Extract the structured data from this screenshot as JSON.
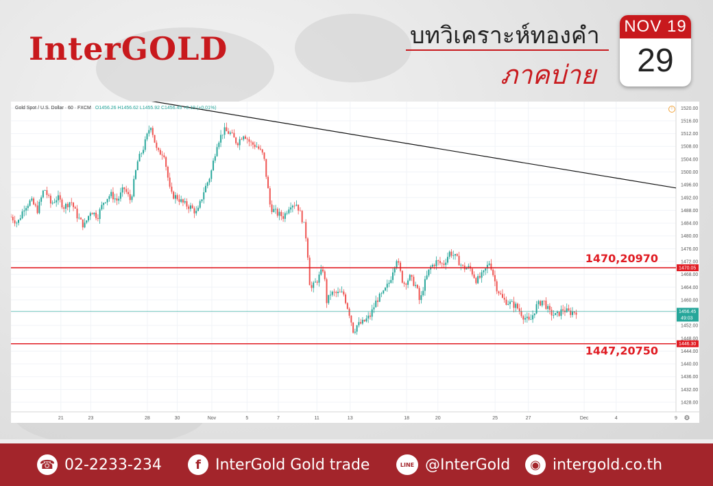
{
  "header": {
    "logo_text": "InterGOLD",
    "title_line1": "บทวิเคราะห์ทองคำ",
    "title_line2": "ภาคบ่าย",
    "calendar_month": "NOV 19",
    "calendar_day": "29"
  },
  "chart_data": {
    "type": "candlestick",
    "symbol_label": "Gold Spot / U.S. Dollar · 60 · FXCM",
    "ohlc_label": "O1456.26 H1456.62 L1455.92 C1456.45 +0.19 (+0.01%)",
    "y_ticks": [
      1520,
      1516,
      1512,
      1508,
      1504,
      1500,
      1496,
      1492,
      1488,
      1484,
      1480,
      1476,
      1472,
      1468,
      1464,
      1460,
      1456,
      1452,
      1448,
      1444,
      1440,
      1436,
      1432,
      1428
    ],
    "y_tick_labels": [
      "1520.00",
      "1516.00",
      "1512.00",
      "1508.00",
      "1504.00",
      "1500.00",
      "1496.00",
      "1492.00",
      "1488.00",
      "1484.00",
      "1480.00",
      "1476.00",
      "1472.00",
      "1468.00",
      "1464.00",
      "1460.00",
      "1456.00",
      "1452.00",
      "1448.00",
      "1444.00",
      "1440.00",
      "1436.00",
      "1432.00",
      "1428.00"
    ],
    "ylim": [
      1425,
      1522
    ],
    "x_ticks": [
      {
        "label": "21",
        "t": 0.075
      },
      {
        "label": "23",
        "t": 0.12
      },
      {
        "label": "28",
        "t": 0.205
      },
      {
        "label": "30",
        "t": 0.25
      },
      {
        "label": "Nov",
        "t": 0.302
      },
      {
        "label": "5",
        "t": 0.355
      },
      {
        "label": "7",
        "t": 0.402
      },
      {
        "label": "11",
        "t": 0.46
      },
      {
        "label": "13",
        "t": 0.51
      },
      {
        "label": "18",
        "t": 0.595
      },
      {
        "label": "20",
        "t": 0.642
      },
      {
        "label": "25",
        "t": 0.728
      },
      {
        "label": "27",
        "t": 0.778
      },
      {
        "label": "Dec",
        "t": 0.862
      },
      {
        "label": "4",
        "t": 0.91
      },
      {
        "label": "9",
        "t": 1.0
      }
    ],
    "close_path": [
      [
        0.0,
        1486
      ],
      [
        0.01,
        1484
      ],
      [
        0.02,
        1489
      ],
      [
        0.03,
        1491
      ],
      [
        0.04,
        1488
      ],
      [
        0.05,
        1495
      ],
      [
        0.06,
        1490
      ],
      [
        0.07,
        1492
      ],
      [
        0.08,
        1489
      ],
      [
        0.09,
        1491
      ],
      [
        0.1,
        1486
      ],
      [
        0.11,
        1483
      ],
      [
        0.12,
        1488
      ],
      [
        0.13,
        1486
      ],
      [
        0.14,
        1491
      ],
      [
        0.15,
        1493
      ],
      [
        0.16,
        1491
      ],
      [
        0.17,
        1495
      ],
      [
        0.18,
        1491
      ],
      [
        0.19,
        1503
      ],
      [
        0.2,
        1508
      ],
      [
        0.21,
        1515
      ],
      [
        0.22,
        1506
      ],
      [
        0.23,
        1506
      ],
      [
        0.24,
        1493
      ],
      [
        0.25,
        1492
      ],
      [
        0.26,
        1490
      ],
      [
        0.27,
        1489
      ],
      [
        0.28,
        1487
      ],
      [
        0.29,
        1494
      ],
      [
        0.3,
        1499
      ],
      [
        0.31,
        1509
      ],
      [
        0.32,
        1513
      ],
      [
        0.33,
        1512
      ],
      [
        0.34,
        1509
      ],
      [
        0.35,
        1512
      ],
      [
        0.36,
        1509
      ],
      [
        0.37,
        1508
      ],
      [
        0.38,
        1505
      ],
      [
        0.39,
        1489
      ],
      [
        0.4,
        1487
      ],
      [
        0.41,
        1486
      ],
      [
        0.42,
        1490
      ],
      [
        0.43,
        1490
      ],
      [
        0.44,
        1484
      ],
      [
        0.445,
        1478
      ],
      [
        0.45,
        1463
      ],
      [
        0.46,
        1466
      ],
      [
        0.47,
        1470
      ],
      [
        0.475,
        1459
      ],
      [
        0.48,
        1462
      ],
      [
        0.49,
        1462
      ],
      [
        0.5,
        1462
      ],
      [
        0.51,
        1455
      ],
      [
        0.515,
        1450
      ],
      [
        0.52,
        1452
      ],
      [
        0.53,
        1453
      ],
      [
        0.54,
        1455
      ],
      [
        0.55,
        1460
      ],
      [
        0.56,
        1462
      ],
      [
        0.57,
        1466
      ],
      [
        0.575,
        1470
      ],
      [
        0.58,
        1473
      ],
      [
        0.59,
        1465
      ],
      [
        0.6,
        1467
      ],
      [
        0.61,
        1464
      ],
      [
        0.615,
        1459
      ],
      [
        0.62,
        1464
      ],
      [
        0.63,
        1470
      ],
      [
        0.64,
        1472
      ],
      [
        0.65,
        1471
      ],
      [
        0.66,
        1475
      ],
      [
        0.67,
        1473
      ],
      [
        0.68,
        1470
      ],
      [
        0.69,
        1470
      ],
      [
        0.7,
        1466
      ],
      [
        0.71,
        1468
      ],
      [
        0.72,
        1472
      ],
      [
        0.725,
        1468
      ],
      [
        0.73,
        1464
      ],
      [
        0.74,
        1460
      ],
      [
        0.75,
        1459
      ],
      [
        0.76,
        1458
      ],
      [
        0.77,
        1455
      ],
      [
        0.78,
        1453
      ],
      [
        0.79,
        1458
      ],
      [
        0.8,
        1460
      ],
      [
        0.81,
        1456
      ],
      [
        0.82,
        1455
      ],
      [
        0.83,
        1457
      ],
      [
        0.84,
        1456
      ],
      [
        0.85,
        1456.45
      ]
    ],
    "trendline": {
      "from": [
        0.165,
        1522
      ],
      "to": [
        1.0,
        1495
      ]
    },
    "resistance": {
      "price": 1470.05,
      "price_label": "1470.05",
      "annotation": "1470,20970",
      "color": "#e01b22"
    },
    "support": {
      "price": 1446.3,
      "price_label": "1446.30",
      "annotation": "1447,20750",
      "color": "#e01b22"
    },
    "current": {
      "price": 1456.45,
      "price_label": "1456.45",
      "timer_label": "49:03",
      "color": "#26a69a"
    }
  },
  "footer": {
    "phone_icon": "phone-icon",
    "phone": "02-2233-234",
    "facebook_icon_text": "f",
    "facebook": "InterGold Gold trade",
    "line_icon_text": "LINE",
    "line": "@InterGold",
    "globe_icon_text": "◉",
    "website": "intergold.co.th"
  }
}
